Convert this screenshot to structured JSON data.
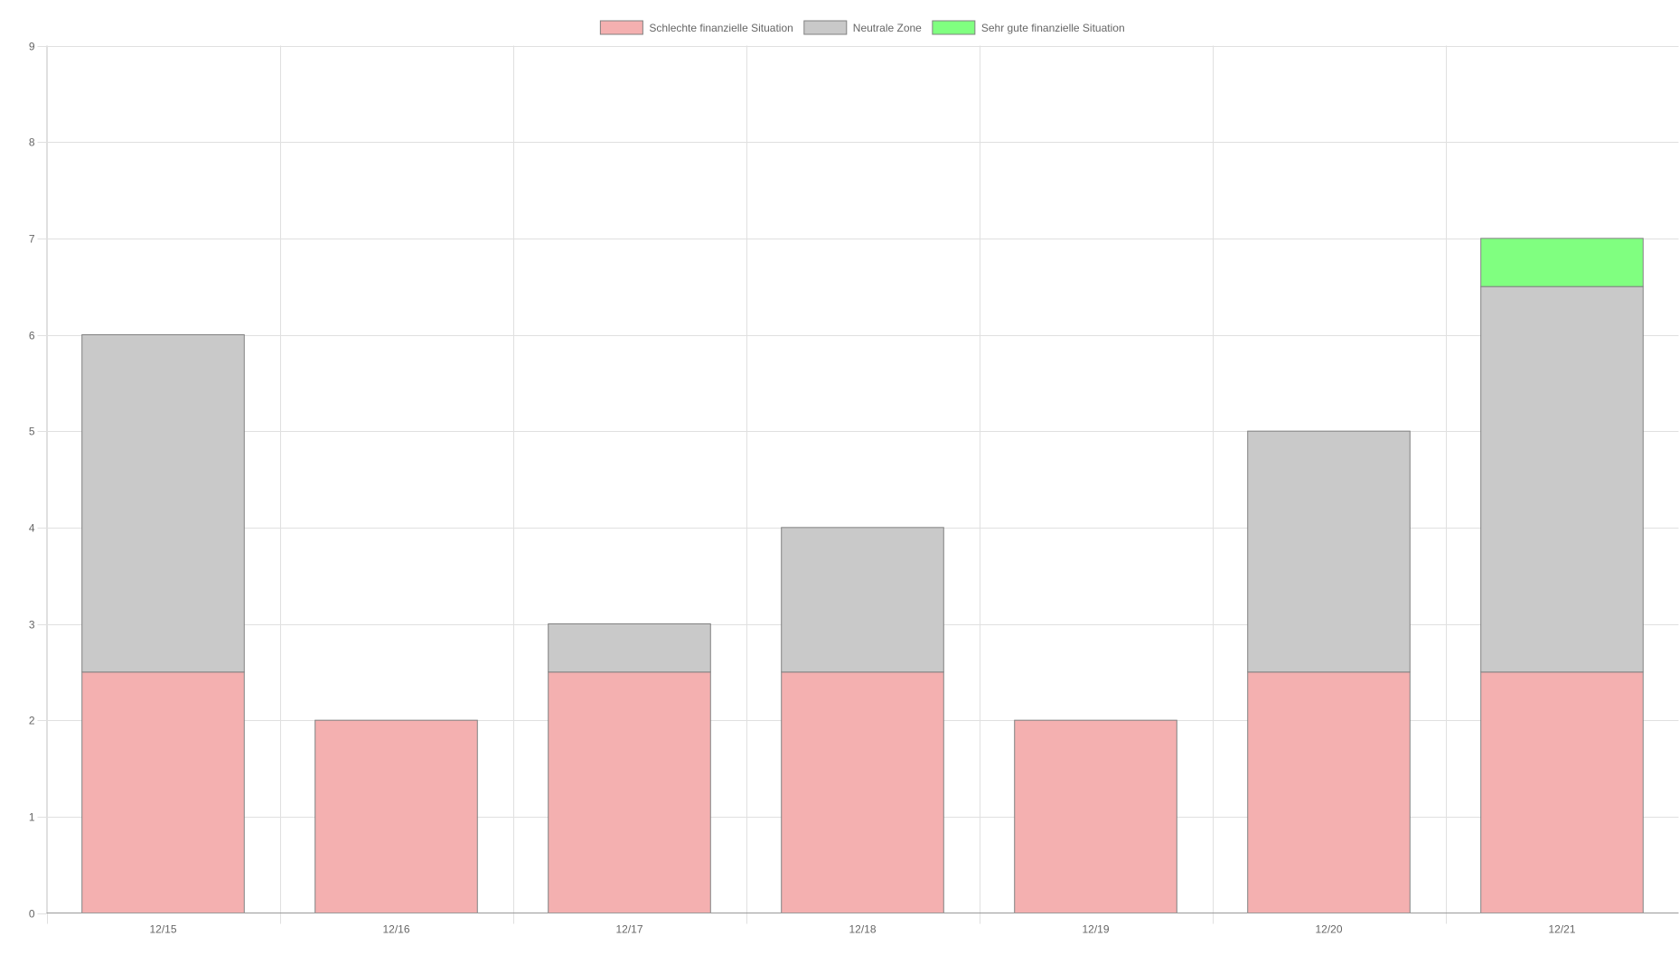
{
  "chart_data": {
    "type": "bar",
    "stacked": true,
    "categories": [
      "12/15",
      "12/16",
      "12/17",
      "12/18",
      "12/19",
      "12/20",
      "12/21"
    ],
    "series": [
      {
        "name": "Schlechte finanzielle Situation",
        "color": "#f4b0b0",
        "values": [
          2.5,
          2,
          2.5,
          2.5,
          2,
          2.5,
          2.5
        ]
      },
      {
        "name": "Neutrale Zone",
        "color": "#c9c9c9",
        "values": [
          3.5,
          0,
          0.5,
          1.5,
          0,
          2.5,
          4
        ]
      },
      {
        "name": "Sehr gute finanzielle Situation",
        "color": "#80ff80",
        "values": [
          0,
          0,
          0,
          0,
          0,
          0,
          0.5
        ]
      }
    ],
    "ylim": [
      0,
      9
    ],
    "yticks": [
      0,
      1,
      2,
      3,
      4,
      5,
      6,
      7,
      8,
      9
    ],
    "grid": true,
    "legend_position": "top",
    "bar_border_color": "#808080",
    "grid_color": "#e0e0e0",
    "axis_color": "#9a9a9a"
  }
}
